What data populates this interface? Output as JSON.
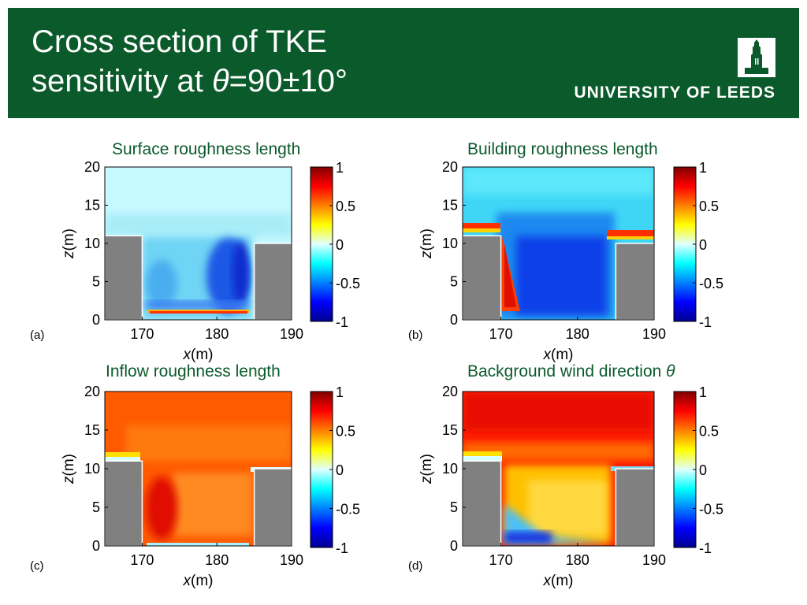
{
  "header": {
    "title_line1": "Cross section of TKE",
    "title_line2_a": "sensitivity at ",
    "title_theta": "θ",
    "title_line2_b": "=90±10°",
    "university": "UNIVERSITY OF LEEDS",
    "logo_icon": "leeds-parkinson-tower-icon",
    "colors": {
      "header_bg": "#0b5a2b",
      "title_text": "#ffffff",
      "panel_title": "#0b5a2b",
      "building": "#808080"
    }
  },
  "chart_data": [
    {
      "type": "heatmap",
      "panel_label": "(a)",
      "title": "Surface roughness length",
      "xlabel_var": "x",
      "xlabel_unit": "(m)",
      "ylabel_var": "z",
      "ylabel_unit": "(m)",
      "xlim": [
        165,
        190
      ],
      "ylim": [
        0,
        20
      ],
      "xticks": [
        "170",
        "180",
        "190"
      ],
      "yticks": [
        "0",
        "5",
        "10",
        "15",
        "20"
      ],
      "colorbar": {
        "range": [
          -1,
          1
        ],
        "ticks": [
          "1",
          "0.5",
          "0",
          "-0.5",
          "-1"
        ]
      },
      "buildings": [
        {
          "x": [
            165,
            170
          ],
          "z_top": 11
        },
        {
          "x": [
            185,
            190
          ],
          "z_top": 10
        }
      ],
      "description_values": {
        "above_canopy": 0.1,
        "canyon_core": -0.3,
        "canyon_right": -0.8,
        "near_ground": 0.6
      }
    },
    {
      "type": "heatmap",
      "panel_label": "(b)",
      "title": "Building roughness length",
      "xlabel_var": "x",
      "xlabel_unit": "(m)",
      "ylabel_var": "z",
      "ylabel_unit": "(m)",
      "xlim": [
        165,
        190
      ],
      "ylim": [
        0,
        20
      ],
      "xticks": [
        "170",
        "180",
        "190"
      ],
      "yticks": [
        "0",
        "5",
        "10",
        "15",
        "20"
      ],
      "colorbar": {
        "range": [
          -1,
          1
        ],
        "ticks": [
          "1",
          "0.5",
          "0",
          "-0.5",
          "-1"
        ]
      },
      "buildings": [
        {
          "x": [
            165,
            170
          ],
          "z_top": 11
        },
        {
          "x": [
            185,
            190
          ],
          "z_top": 10
        }
      ],
      "description_values": {
        "above_canopy": -0.2,
        "canyon_core": -0.8,
        "left_wall": 0.9,
        "roof_shear": 0.8
      }
    },
    {
      "type": "heatmap",
      "panel_label": "(c)",
      "title": "Inflow roughness length",
      "xlabel_var": "x",
      "xlabel_unit": "(m)",
      "ylabel_var": "z",
      "ylabel_unit": "(m)",
      "xlim": [
        165,
        190
      ],
      "ylim": [
        0,
        20
      ],
      "xticks": [
        "170",
        "180",
        "190"
      ],
      "yticks": [
        "0",
        "5",
        "10",
        "15",
        "20"
      ],
      "colorbar": {
        "range": [
          -1,
          1
        ],
        "ticks": [
          "1",
          "0.5",
          "0",
          "-0.5",
          "-1"
        ]
      },
      "buildings": [
        {
          "x": [
            165,
            170
          ],
          "z_top": 11
        },
        {
          "x": [
            185,
            190
          ],
          "z_top": 10
        }
      ],
      "description_values": {
        "above_canopy": 0.7,
        "canyon_core": 0.6,
        "left_wall": 0.9,
        "near_ground": -0.1
      }
    },
    {
      "type": "heatmap",
      "panel_label": "(d)",
      "title": "Background wind direction ",
      "title_theta": "θ",
      "xlabel_var": "x",
      "xlabel_unit": "(m)",
      "ylabel_var": "z",
      "ylabel_unit": "(m)",
      "xlim": [
        165,
        190
      ],
      "ylim": [
        0,
        20
      ],
      "xticks": [
        "170",
        "180",
        "190"
      ],
      "yticks": [
        "0",
        "5",
        "10",
        "15",
        "20"
      ],
      "colorbar": {
        "range": [
          -1,
          1
        ],
        "ticks": [
          "1",
          "0.5",
          "0",
          "-0.5",
          "-1"
        ]
      },
      "buildings": [
        {
          "x": [
            165,
            170
          ],
          "z_top": 11
        },
        {
          "x": [
            185,
            190
          ],
          "z_top": 10
        }
      ],
      "description_values": {
        "above_canopy": 0.9,
        "canyon_core": 0.4,
        "near_ground": -0.7
      }
    }
  ]
}
